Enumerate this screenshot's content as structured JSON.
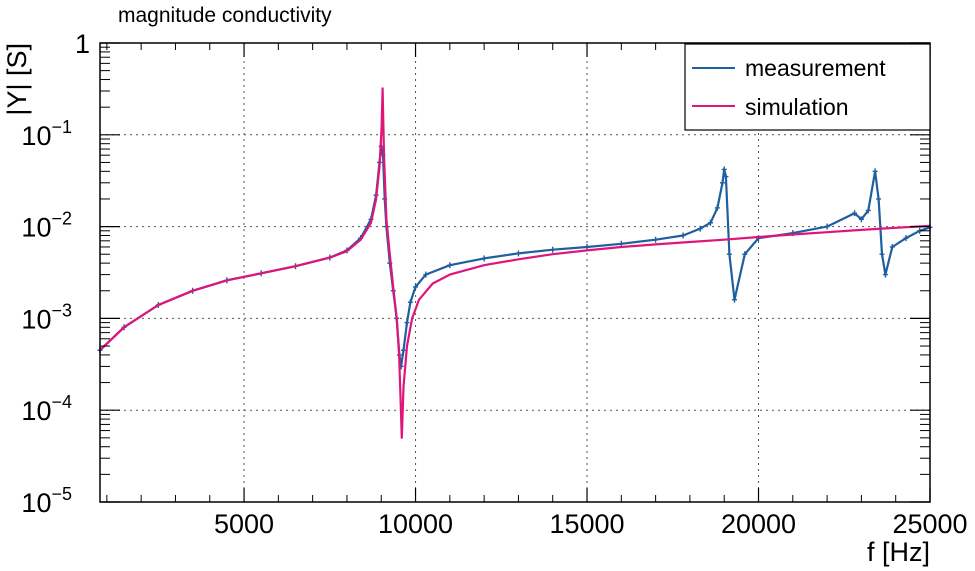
{
  "chart_data": {
    "type": "line",
    "title": "magnitude conductivity",
    "xlabel": "f [Hz]",
    "ylabel": "|Y| [S]",
    "xlim": [
      800,
      25000
    ],
    "ylim": [
      1e-05,
      1
    ],
    "yscale": "log",
    "grid": true,
    "legend_position": "top-right",
    "x_ticks": [
      {
        "value": 5000,
        "label": "5000"
      },
      {
        "value": 10000,
        "label": "10000"
      },
      {
        "value": 15000,
        "label": "15000"
      },
      {
        "value": 20000,
        "label": "20000"
      },
      {
        "value": 25000,
        "label": "25000"
      }
    ],
    "y_ticks": [
      {
        "value": 1,
        "base": "1",
        "exp": ""
      },
      {
        "value": 0.1,
        "base": "10",
        "exp": "−1"
      },
      {
        "value": 0.01,
        "base": "10",
        "exp": "−2"
      },
      {
        "value": 0.001,
        "base": "10",
        "exp": "−3"
      },
      {
        "value": 0.0001,
        "base": "10",
        "exp": "−4"
      },
      {
        "value": 1e-05,
        "base": "10",
        "exp": "−5"
      }
    ],
    "series": [
      {
        "name": "measurement",
        "color": "#1f5fa0",
        "markers": true,
        "x": [
          800,
          1500,
          2500,
          3500,
          4500,
          5500,
          6500,
          7500,
          8000,
          8400,
          8700,
          8850,
          8950,
          9000,
          9050,
          9100,
          9150,
          9250,
          9350,
          9450,
          9530,
          9580,
          9650,
          9750,
          9850,
          10000,
          10300,
          11000,
          12000,
          13000,
          14000,
          15000,
          16000,
          17000,
          17800,
          18300,
          18600,
          18800,
          18950,
          19000,
          19050,
          19150,
          19300,
          19600,
          20000,
          21000,
          22000,
          22800,
          23000,
          23200,
          23400,
          23500,
          23600,
          23700,
          23900,
          24300,
          24700,
          25000
        ],
        "y": [
          0.00045,
          0.0008,
          0.0014,
          0.002,
          0.0026,
          0.0031,
          0.0037,
          0.0046,
          0.0055,
          0.0075,
          0.012,
          0.022,
          0.05,
          0.075,
          0.06,
          0.02,
          0.01,
          0.004,
          0.002,
          0.001,
          0.0004,
          0.0003,
          0.00045,
          0.0009,
          0.0015,
          0.0022,
          0.003,
          0.0038,
          0.0045,
          0.0051,
          0.0056,
          0.006,
          0.0065,
          0.0072,
          0.008,
          0.0095,
          0.011,
          0.016,
          0.03,
          0.042,
          0.035,
          0.005,
          0.0016,
          0.005,
          0.0075,
          0.0085,
          0.01,
          0.014,
          0.012,
          0.015,
          0.04,
          0.02,
          0.005,
          0.003,
          0.006,
          0.0075,
          0.009,
          0.0098
        ]
      },
      {
        "name": "simulation",
        "color": "#e0157a",
        "markers": false,
        "x": [
          800,
          1500,
          2500,
          3500,
          4500,
          5500,
          6500,
          7500,
          8000,
          8400,
          8700,
          8850,
          8950,
          9010,
          9040,
          9080,
          9150,
          9250,
          9350,
          9450,
          9520,
          9560,
          9600,
          9650,
          9750,
          9900,
          10100,
          10500,
          11000,
          12000,
          13000,
          14000,
          15000,
          16000,
          17000,
          18000,
          19000,
          20000,
          21000,
          22000,
          23000,
          24000,
          25000
        ],
        "y": [
          0.00045,
          0.0008,
          0.0014,
          0.002,
          0.0026,
          0.0031,
          0.0037,
          0.0046,
          0.0054,
          0.0072,
          0.011,
          0.02,
          0.045,
          0.12,
          0.32,
          0.06,
          0.012,
          0.005,
          0.0022,
          0.001,
          0.0004,
          0.00015,
          5e-05,
          0.00018,
          0.0005,
          0.001,
          0.0016,
          0.0024,
          0.003,
          0.0038,
          0.0044,
          0.005,
          0.0055,
          0.006,
          0.0064,
          0.0068,
          0.0072,
          0.0077,
          0.0082,
          0.0087,
          0.0092,
          0.0097,
          0.0102
        ]
      }
    ]
  }
}
